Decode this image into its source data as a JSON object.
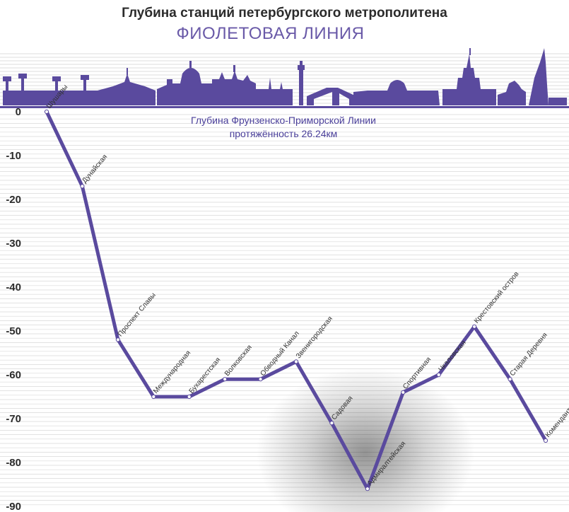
{
  "title": "Глубина станций петербургского метрополитена",
  "subtitle": "ФИОЛЕТОВАЯ ЛИНИЯ",
  "colors": {
    "line": "#5a4a9e",
    "skyline": "#5a4a9e",
    "grid": "#d9d9d9",
    "title": "#2b2b2b",
    "subtitle": "#6a5aa8",
    "shadow": "#000000"
  },
  "skyline_icon": "saint-petersburg-skyline-icon",
  "chart_data": {
    "type": "line",
    "title": "",
    "xlabel": "",
    "ylabel": "",
    "ylim": [
      -90,
      0
    ],
    "yticks": [
      0,
      -10,
      -20,
      -30,
      -40,
      -50,
      -60,
      -70,
      -80,
      -90
    ],
    "grid": true,
    "legend": "none",
    "categories": [
      "Шушары",
      "Дунайская",
      "Проспект Славы",
      "Международная",
      "Бухарестская",
      "Волковская",
      "Обводный Канал",
      "Звенигородская",
      "Садовая",
      "Адмиралтейская",
      "Спортивная",
      "Чкаловская",
      "Крестовский остров",
      "Старая Деревня",
      "Комендантский проспект"
    ],
    "series": [
      {
        "values": [
          0,
          -17,
          -52,
          -65,
          -65,
          -61,
          -61,
          -57,
          -71,
          -86,
          -64,
          -60,
          -49,
          -61,
          -75
        ]
      }
    ],
    "annotation": {
      "line1": "Глубина Фрунзенско-Приморской Линии",
      "line2": "протяжённость 26.24км"
    }
  }
}
